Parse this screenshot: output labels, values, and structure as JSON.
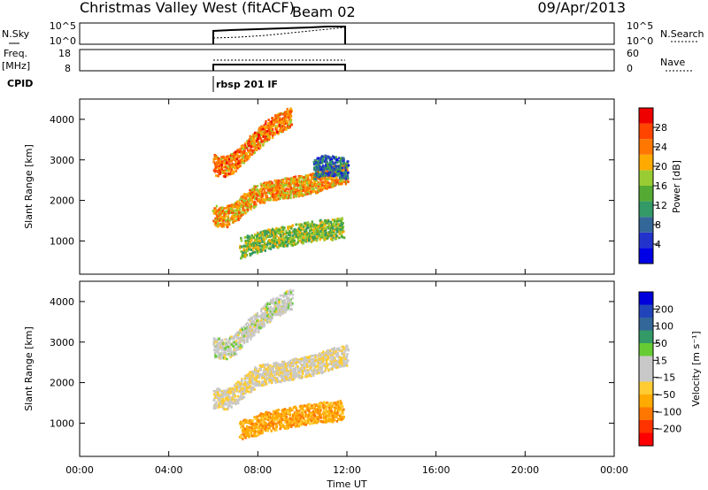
{
  "header": {
    "station": "Christmas Valley West (fitACF)",
    "beam": "Beam 02",
    "date": "09/Apr/2013"
  },
  "top_panels": {
    "nsky": {
      "label": "N.Sky",
      "left_ticks": [
        "10^5",
        "10^0"
      ],
      "right_ticks": [
        "10^5",
        "10^0"
      ],
      "right_label": "N.Search"
    },
    "freq": {
      "label_line1": "Freq.",
      "label_line2": "[MHz]",
      "left_ticks": [
        "18",
        "8"
      ],
      "right_ticks": [
        "60",
        "0"
      ],
      "right_label": "Nave"
    },
    "cpid": {
      "label": "CPID",
      "value": "rbsp 201 IF"
    }
  },
  "colorbars": {
    "power": {
      "label": "Power [dB]",
      "ticks": [
        "28",
        "24",
        "20",
        "16",
        "12",
        "8",
        "4"
      ],
      "colors": [
        "#0000e6",
        "#2233cc",
        "#336699",
        "#339966",
        "#55aa33",
        "#99cc33",
        "#ffaa00",
        "#ff7700",
        "#ff4400",
        "#ee0000"
      ]
    },
    "velocity": {
      "label": "Velocity [m s⁻¹]",
      "ticks": [
        "200",
        "100",
        "50",
        "15",
        "−15",
        "−50",
        "−100",
        "−200"
      ],
      "colors": [
        "#ff0000",
        "#ff3300",
        "#ff7700",
        "#ffaa00",
        "#ffcc33",
        "#c8c8c8",
        "#c8c8c8",
        "#66cc33",
        "#339966",
        "#336699",
        "#2244bb",
        "#0000dd"
      ]
    }
  },
  "chart_data": [
    {
      "type": "heatmap",
      "title": "Power",
      "ylabel": "Slant Range [km]",
      "xlabel": "Time UT",
      "x_range_hours": [
        0,
        24
      ],
      "y_range_km": [
        180,
        4500
      ],
      "x_tick_labels": [
        "00:00",
        "04:00",
        "08:00",
        "12:00",
        "16:00",
        "20:00",
        "00:00"
      ],
      "y_tick_labels": [
        "1000",
        "2000",
        "3000",
        "4000"
      ],
      "data_window_hours": [
        6.0,
        12.0
      ],
      "scatter_bands": [
        {
          "x": [
            6.0,
            6.5,
            7.0,
            7.5,
            8.0,
            8.5,
            9.0,
            9.5
          ],
          "range_km": [
            2900,
            2850,
            3000,
            3300,
            3550,
            3800,
            3950,
            4100
          ],
          "power_db": 24
        },
        {
          "x": [
            6.0,
            6.5,
            7.0,
            7.5,
            8.0,
            8.5,
            9.0,
            9.5,
            10.0,
            10.5,
            11.0,
            11.5,
            12.0
          ],
          "range_km": [
            1650,
            1600,
            1750,
            2000,
            2200,
            2250,
            2300,
            2350,
            2400,
            2450,
            2550,
            2650,
            2700
          ],
          "power_db": 22
        },
        {
          "x": [
            7.2,
            7.8,
            8.3,
            8.8,
            9.3,
            9.8,
            10.3,
            10.8,
            11.3,
            11.8
          ],
          "range_km": [
            850,
            950,
            1050,
            1100,
            1150,
            1200,
            1250,
            1300,
            1300,
            1350
          ],
          "power_db": 16
        },
        {
          "x": [
            10.5,
            11.0,
            11.5,
            12.0
          ],
          "range_km": [
            2800,
            2900,
            2850,
            2800
          ],
          "power_db": 8
        }
      ]
    },
    {
      "type": "heatmap",
      "title": "Velocity",
      "ylabel": "Slant Range [km]",
      "xlabel": "Time UT",
      "x_range_hours": [
        0,
        24
      ],
      "y_range_km": [
        180,
        4500
      ],
      "x_tick_labels": [
        "00:00",
        "04:00",
        "08:00",
        "12:00",
        "16:00",
        "20:00",
        "00:00"
      ],
      "y_tick_labels": [
        "1000",
        "2000",
        "3000",
        "4000"
      ],
      "data_window_hours": [
        6.0,
        12.0
      ],
      "scatter_bands": [
        {
          "x": [
            6.0,
            6.5,
            7.0,
            7.5,
            8.0,
            8.5,
            9.0,
            9.5
          ],
          "range_km": [
            2900,
            2850,
            3000,
            3300,
            3550,
            3800,
            3950,
            4100
          ],
          "velocity": 0
        },
        {
          "x": [
            6.0,
            6.5,
            7.0,
            7.5,
            8.0,
            8.5,
            9.0,
            9.5,
            10.0,
            10.5,
            11.0,
            11.5,
            12.0
          ],
          "range_km": [
            1650,
            1600,
            1750,
            2000,
            2200,
            2250,
            2300,
            2350,
            2400,
            2450,
            2550,
            2650,
            2700
          ],
          "velocity": -10
        },
        {
          "x": [
            7.2,
            7.8,
            8.3,
            8.8,
            9.3,
            9.8,
            10.3,
            10.8,
            11.3,
            11.8
          ],
          "range_km": [
            850,
            950,
            1050,
            1100,
            1150,
            1200,
            1250,
            1300,
            1300,
            1350
          ],
          "velocity": -40
        }
      ]
    }
  ],
  "xlabel": "Time UT",
  "ylabel": "Slant Range [km]"
}
